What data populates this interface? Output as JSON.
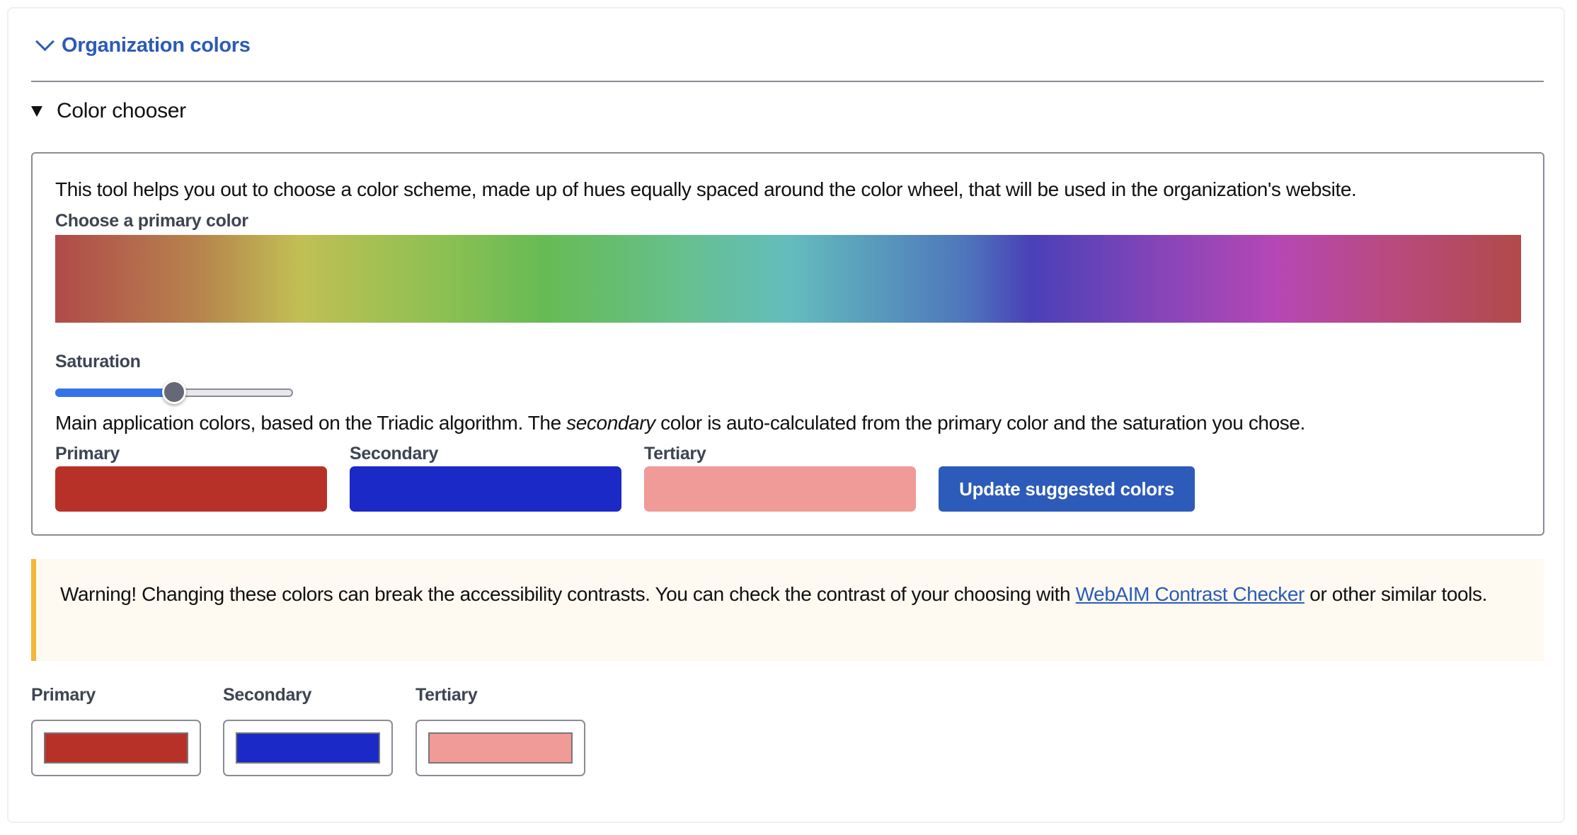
{
  "section": {
    "title": "Organization colors",
    "icon": "chevron-down-icon"
  },
  "chooser": {
    "summary": "Color chooser",
    "description": "This tool helps you out to choose a color scheme, made up of hues equally spaced around the color wheel, that will be used in the organization's website.",
    "primary_label": "Choose a primary color",
    "saturation_label": "Saturation",
    "saturation_value": 0.5,
    "main_text_before": "Main application colors, based on the Triadic algorithm. The ",
    "main_text_em": "secondary",
    "main_text_after": " color is auto-calculated from the primary color and the saturation you chose.",
    "swatches": [
      {
        "label": "Primary",
        "color": "#b83129"
      },
      {
        "label": "Secondary",
        "color": "#1b29c6"
      },
      {
        "label": "Tertiary",
        "color": "#f09b98"
      }
    ],
    "update_button": "Update suggested colors"
  },
  "warning": {
    "text_before": "Warning! Changing these colors can break the accessibility contrasts. You can check the contrast of your choosing with ",
    "link": "WebAIM Contrast Checker",
    "text_after": " or other similar tools.",
    "accent": "#f1b83a"
  },
  "inputs": [
    {
      "label": "Primary",
      "color": "#b83129"
    },
    {
      "label": "Secondary",
      "color": "#1b29c6"
    },
    {
      "label": "Tertiary",
      "color": "#f09b98"
    }
  ]
}
